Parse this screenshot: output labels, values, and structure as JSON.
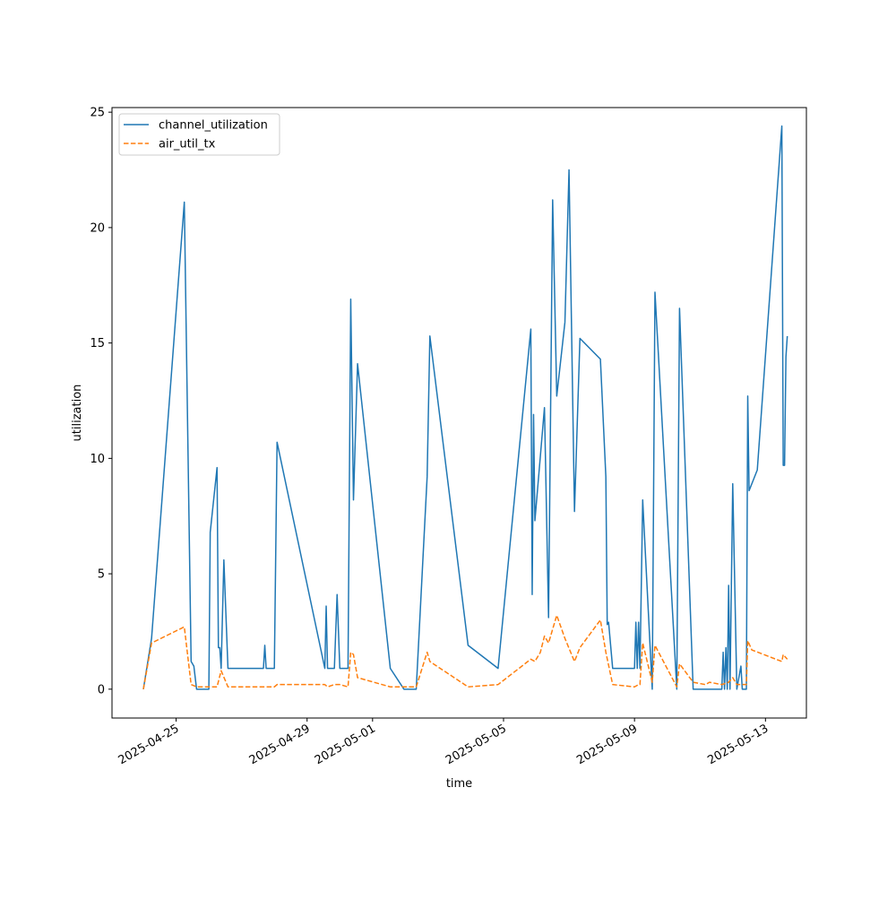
{
  "chart_data": {
    "type": "line",
    "title": "",
    "xlabel": "time",
    "ylabel": "utilization",
    "xlim": [
      "2025-04-23T01:00",
      "2025-05-14T06:00"
    ],
    "ylim": [
      -1.25,
      25.2
    ],
    "grid": false,
    "legend": "top-left",
    "x_ticks": [
      "2025-04-25",
      "2025-04-29",
      "2025-05-01",
      "2025-05-05",
      "2025-05-09",
      "2025-05-13"
    ],
    "y_ticks": [
      0,
      5,
      10,
      15,
      20,
      25
    ],
    "series": [
      {
        "name": "channel_utilization",
        "color": "#1f77b4",
        "style": "solid",
        "points": [
          [
            "2025-04-24T00:00",
            0.0
          ],
          [
            "2025-04-24T06:00",
            2.2
          ],
          [
            "2025-04-25T06:00",
            21.1
          ],
          [
            "2025-04-25T11:00",
            1.2
          ],
          [
            "2025-04-25T13:00",
            1.0
          ],
          [
            "2025-04-25T15:00",
            0.0
          ],
          [
            "2025-04-26T00:00",
            0.0
          ],
          [
            "2025-04-26T01:00",
            6.8
          ],
          [
            "2025-04-26T06:00",
            9.6
          ],
          [
            "2025-04-26T07:00",
            1.8
          ],
          [
            "2025-04-26T08:00",
            1.8
          ],
          [
            "2025-04-26T09:00",
            0.9
          ],
          [
            "2025-04-26T11:00",
            5.6
          ],
          [
            "2025-04-26T14:00",
            0.9
          ],
          [
            "2025-04-27T16:00",
            0.9
          ],
          [
            "2025-04-27T17:00",
            1.9
          ],
          [
            "2025-04-27T18:00",
            0.9
          ],
          [
            "2025-04-28T00:00",
            0.9
          ],
          [
            "2025-04-28T02:00",
            10.7
          ],
          [
            "2025-04-29T13:00",
            0.9
          ],
          [
            "2025-04-29T14:00",
            3.6
          ],
          [
            "2025-04-29T15:00",
            0.9
          ],
          [
            "2025-04-29T20:00",
            0.9
          ],
          [
            "2025-04-29T22:00",
            4.1
          ],
          [
            "2025-04-30T00:00",
            0.9
          ],
          [
            "2025-04-30T06:00",
            0.9
          ],
          [
            "2025-04-30T08:00",
            16.9
          ],
          [
            "2025-04-30T10:00",
            8.2
          ],
          [
            "2025-04-30T13:00",
            14.1
          ],
          [
            "2025-05-01T13:00",
            0.9
          ],
          [
            "2025-05-01T23:00",
            0.0
          ],
          [
            "2025-05-02T08:00",
            0.0
          ],
          [
            "2025-05-02T16:00",
            9.2
          ],
          [
            "2025-05-02T18:00",
            15.3
          ],
          [
            "2025-05-03T22:00",
            1.9
          ],
          [
            "2025-05-04T20:00",
            0.9
          ],
          [
            "2025-05-05T20:00",
            15.6
          ],
          [
            "2025-05-05T21:00",
            4.1
          ],
          [
            "2025-05-05T22:00",
            11.9
          ],
          [
            "2025-05-05T23:00",
            7.3
          ],
          [
            "2025-05-06T06:00",
            12.2
          ],
          [
            "2025-05-06T09:00",
            3.1
          ],
          [
            "2025-05-06T12:00",
            21.2
          ],
          [
            "2025-05-06T15:00",
            12.7
          ],
          [
            "2025-05-06T21:00",
            15.9
          ],
          [
            "2025-05-07T00:00",
            22.5
          ],
          [
            "2025-05-07T04:00",
            7.7
          ],
          [
            "2025-05-07T08:00",
            15.2
          ],
          [
            "2025-05-07T23:00",
            14.3
          ],
          [
            "2025-05-08T03:00",
            9.2
          ],
          [
            "2025-05-08T04:00",
            2.8
          ],
          [
            "2025-05-08T05:00",
            2.9
          ],
          [
            "2025-05-08T08:00",
            0.9
          ],
          [
            "2025-05-09T00:00",
            0.9
          ],
          [
            "2025-05-09T01:00",
            2.9
          ],
          [
            "2025-05-09T02:00",
            0.9
          ],
          [
            "2025-05-09T03:00",
            2.9
          ],
          [
            "2025-05-09T04:00",
            0.9
          ],
          [
            "2025-05-09T06:00",
            8.2
          ],
          [
            "2025-05-09T13:00",
            0.0
          ],
          [
            "2025-05-09T15:00",
            17.2
          ],
          [
            "2025-05-10T07:00",
            0.0
          ],
          [
            "2025-05-10T09:00",
            16.5
          ],
          [
            "2025-05-10T19:00",
            0.0
          ],
          [
            "2025-05-11T16:00",
            0.0
          ],
          [
            "2025-05-11T17:00",
            1.6
          ],
          [
            "2025-05-11T18:00",
            0.0
          ],
          [
            "2025-05-11T19:00",
            1.8
          ],
          [
            "2025-05-11T20:00",
            0.0
          ],
          [
            "2025-05-11T21:00",
            4.5
          ],
          [
            "2025-05-11T22:00",
            0.0
          ],
          [
            "2025-05-12T00:00",
            8.9
          ],
          [
            "2025-05-12T03:00",
            0.0
          ],
          [
            "2025-05-12T06:00",
            1.0
          ],
          [
            "2025-05-12T07:00",
            0.0
          ],
          [
            "2025-05-12T10:00",
            0.0
          ],
          [
            "2025-05-12T11:00",
            12.7
          ],
          [
            "2025-05-12T12:00",
            8.6
          ],
          [
            "2025-05-12T18:00",
            9.5
          ],
          [
            "2025-05-13T12:00",
            24.4
          ],
          [
            "2025-05-13T13:00",
            9.7
          ],
          [
            "2025-05-13T14:00",
            9.7
          ],
          [
            "2025-05-13T15:00",
            14.4
          ],
          [
            "2025-05-13T16:00",
            15.3
          ]
        ]
      },
      {
        "name": "air_util_tx",
        "color": "#ff7f0e",
        "style": "dashed",
        "points": [
          [
            "2025-04-24T00:00",
            0.0
          ],
          [
            "2025-04-24T06:00",
            2.0
          ],
          [
            "2025-04-25T06:00",
            2.7
          ],
          [
            "2025-04-25T11:00",
            0.2
          ],
          [
            "2025-04-25T15:00",
            0.1
          ],
          [
            "2025-04-26T00:00",
            0.1
          ],
          [
            "2025-04-26T06:00",
            0.1
          ],
          [
            "2025-04-26T09:00",
            0.8
          ],
          [
            "2025-04-26T14:00",
            0.1
          ],
          [
            "2025-04-27T16:00",
            0.1
          ],
          [
            "2025-04-28T00:00",
            0.1
          ],
          [
            "2025-04-28T02:00",
            0.2
          ],
          [
            "2025-04-29T13:00",
            0.2
          ],
          [
            "2025-04-29T15:00",
            0.1
          ],
          [
            "2025-04-29T20:00",
            0.2
          ],
          [
            "2025-04-30T00:00",
            0.2
          ],
          [
            "2025-04-30T06:00",
            0.1
          ],
          [
            "2025-04-30T08:00",
            1.6
          ],
          [
            "2025-04-30T10:00",
            1.5
          ],
          [
            "2025-04-30T13:00",
            0.5
          ],
          [
            "2025-05-01T13:00",
            0.1
          ],
          [
            "2025-05-01T23:00",
            0.1
          ],
          [
            "2025-05-02T08:00",
            0.1
          ],
          [
            "2025-05-02T16:00",
            1.6
          ],
          [
            "2025-05-02T18:00",
            1.2
          ],
          [
            "2025-05-03T22:00",
            0.1
          ],
          [
            "2025-05-04T20:00",
            0.2
          ],
          [
            "2025-05-05T20:00",
            1.3
          ],
          [
            "2025-05-05T23:00",
            1.2
          ],
          [
            "2025-05-06T03:00",
            1.6
          ],
          [
            "2025-05-06T06:00",
            2.3
          ],
          [
            "2025-05-06T09:00",
            2.0
          ],
          [
            "2025-05-06T15:00",
            3.2
          ],
          [
            "2025-05-06T21:00",
            2.2
          ],
          [
            "2025-05-07T04:00",
            1.2
          ],
          [
            "2025-05-07T08:00",
            1.8
          ],
          [
            "2025-05-07T23:00",
            3.0
          ],
          [
            "2025-05-08T03:00",
            1.6
          ],
          [
            "2025-05-08T08:00",
            0.2
          ],
          [
            "2025-05-09T00:00",
            0.1
          ],
          [
            "2025-05-09T03:00",
            0.2
          ],
          [
            "2025-05-09T04:00",
            0.2
          ],
          [
            "2025-05-09T06:00",
            2.0
          ],
          [
            "2025-05-09T13:00",
            0.3
          ],
          [
            "2025-05-09T15:00",
            1.9
          ],
          [
            "2025-05-10T07:00",
            0.1
          ],
          [
            "2025-05-10T09:00",
            1.1
          ],
          [
            "2025-05-10T19:00",
            0.3
          ],
          [
            "2025-05-11T04:00",
            0.2
          ],
          [
            "2025-05-11T07:00",
            0.3
          ],
          [
            "2025-05-11T16:00",
            0.2
          ],
          [
            "2025-05-11T21:00",
            0.3
          ],
          [
            "2025-05-12T00:00",
            0.5
          ],
          [
            "2025-05-12T03:00",
            0.2
          ],
          [
            "2025-05-12T10:00",
            0.2
          ],
          [
            "2025-05-12T11:00",
            2.1
          ],
          [
            "2025-05-12T14:00",
            1.7
          ],
          [
            "2025-05-13T12:00",
            1.2
          ],
          [
            "2025-05-13T13:00",
            1.5
          ],
          [
            "2025-05-13T16:00",
            1.3
          ]
        ]
      }
    ]
  }
}
